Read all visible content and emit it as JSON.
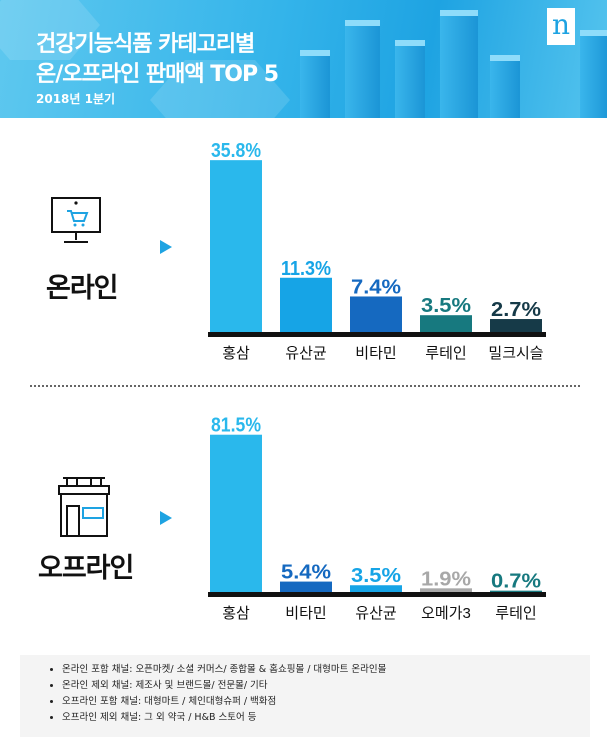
{
  "header": {
    "title_line1": "건강기능식품 카테고리별",
    "title_line2": "온/오프라인 판매액 TOP 5",
    "subtitle": "2018년 1분기",
    "logo": "n"
  },
  "sections": {
    "online_label": "온라인",
    "offline_label": "오프라인"
  },
  "chart_data": [
    {
      "type": "bar",
      "title": "온라인",
      "unit": "%",
      "categories": [
        "홍삼",
        "유산균",
        "비타민",
        "루테인",
        "밀크시슬"
      ],
      "values": [
        35.8,
        11.3,
        7.4,
        3.5,
        2.7
      ],
      "colors": [
        "#2ab8ec",
        "#16a4e6",
        "#1569c0",
        "#17797f",
        "#163a48"
      ]
    },
    {
      "type": "bar",
      "title": "오프라인",
      "unit": "%",
      "categories": [
        "홍삼",
        "비타민",
        "유산균",
        "오메가3",
        "루테인"
      ],
      "values": [
        81.5,
        5.4,
        3.5,
        1.9,
        0.7
      ],
      "colors": [
        "#2ab8ec",
        "#1569c0",
        "#16a4e6",
        "#a8a8a8",
        "#17797f"
      ]
    }
  ],
  "notes": [
    "온라인 포함 채널: 오픈마켓/ 소셜 커머스/ 종합몰 & 홈쇼핑몰 / 대형마트 온라인몰",
    "온라인 제외 채널: 제조사 및 브랜드몰/ 전문몰/ 기타",
    "오프라인 포함 채널: 대형마트 / 체인대형슈퍼 / 백화점",
    "오프라인 제외 채널: 그 외 약국 / H&B 스토어 등"
  ]
}
